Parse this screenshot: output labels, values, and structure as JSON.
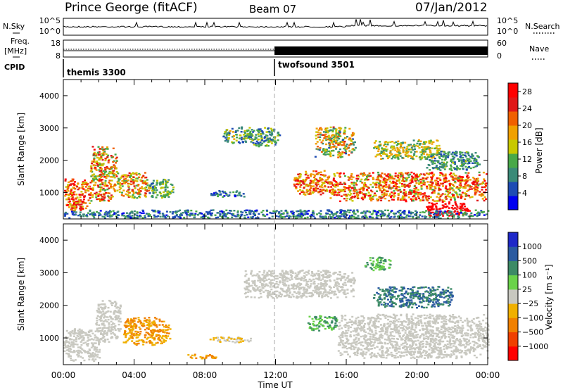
{
  "header": {
    "station": "Prince George (fitACF)",
    "beam": "Beam 07",
    "date": "07/Jan/2012"
  },
  "panels": {
    "nsky": {
      "label": "N.Sky",
      "tick_top": "10^5",
      "tick_bottom": "10^0",
      "right_label": "N.Search",
      "right_tick_top": "10^5",
      "right_tick_bottom": "10^0"
    },
    "freq": {
      "label_1": "Freq.",
      "label_2": "[MHz]",
      "tick_top": "18",
      "tick_bottom": "8",
      "right_label": "Nave",
      "right_tick_top": "60",
      "right_tick_bottom": "0"
    },
    "cpid": {
      "label": "CPID",
      "modes": [
        {
          "name": "themis 3300",
          "start_hour": 0
        },
        {
          "name": "twofsound 3501",
          "start_hour": 12
        }
      ]
    }
  },
  "colors": {
    "power": [
      "#0000f0",
      "#1e4cb4",
      "#3a8a78",
      "#48a848",
      "#c8c800",
      "#f0a000",
      "#f06000",
      "#e01818",
      "#ff0000"
    ],
    "velocity": [
      "#ff0000",
      "#f04000",
      "#f08000",
      "#f0b000",
      "#c8c8c0",
      "#6ad24a",
      "#3c8a66",
      "#2a5aa0",
      "#1e28c8"
    ]
  },
  "chart_data": [
    {
      "type": "heatmap",
      "name": "power",
      "ylabel": "Slant Range [km]",
      "xlim_hours": [
        0,
        24
      ],
      "ylim": [
        180,
        4500
      ],
      "yticks": [
        "1000",
        "2000",
        "3000",
        "4000"
      ],
      "colorbar": {
        "label": "Power [dB]",
        "ticks": [
          "4",
          "8",
          "12",
          "16",
          "20",
          "24",
          "28"
        ],
        "range": [
          0,
          30
        ]
      },
      "blobs": [
        {
          "x": [
            0.0,
            1.5
          ],
          "y": [
            450,
            1450
          ],
          "v": [
            14,
            30
          ]
        },
        {
          "x": [
            1.5,
            3.0
          ],
          "y": [
            750,
            2450
          ],
          "v": [
            10,
            28
          ]
        },
        {
          "x": [
            3.0,
            4.8
          ],
          "y": [
            850,
            1650
          ],
          "v": [
            10,
            26
          ]
        },
        {
          "x": [
            4.8,
            6.2
          ],
          "y": [
            850,
            1450
          ],
          "v": [
            6,
            16
          ]
        },
        {
          "x": [
            8.3,
            10.2
          ],
          "y": [
            880,
            1080
          ],
          "v": [
            2,
            12
          ]
        },
        {
          "x": [
            9.0,
            10.6
          ],
          "y": [
            2550,
            3050
          ],
          "v": [
            4,
            18
          ]
        },
        {
          "x": [
            10.4,
            12.2
          ],
          "y": [
            2450,
            3050
          ],
          "v": [
            4,
            16
          ]
        },
        {
          "x": [
            13.0,
            15.0
          ],
          "y": [
            950,
            1700
          ],
          "v": [
            14,
            28
          ]
        },
        {
          "x": [
            14.2,
            16.5
          ],
          "y": [
            2100,
            3050
          ],
          "v": [
            6,
            24
          ]
        },
        {
          "x": [
            15.0,
            23.9
          ],
          "y": [
            750,
            1650
          ],
          "v": [
            12,
            30
          ]
        },
        {
          "x": [
            20.5,
            23.0
          ],
          "y": [
            300,
            750
          ],
          "v": [
            26,
            30
          ]
        },
        {
          "x": [
            17.5,
            21.5
          ],
          "y": [
            2050,
            2650
          ],
          "v": [
            8,
            20
          ]
        },
        {
          "x": [
            20.5,
            23.5
          ],
          "y": [
            1700,
            2300
          ],
          "v": [
            4,
            14
          ]
        },
        {
          "x": [
            0.0,
            24.0
          ],
          "y": [
            220,
            480
          ],
          "v": [
            2,
            12
          ]
        }
      ]
    },
    {
      "type": "heatmap",
      "name": "velocity",
      "ylabel": "Slant Range [km]",
      "xlabel": "Time UT",
      "xticks": [
        "00:00",
        "04:00",
        "08:00",
        "12:00",
        "16:00",
        "20:00",
        "00:00"
      ],
      "xlim_hours": [
        0,
        24
      ],
      "ylim": [
        180,
        4500
      ],
      "yticks": [
        "1000",
        "2000",
        "3000",
        "4000"
      ],
      "colorbar": {
        "label": "Velocity [m s⁻¹]",
        "ticks": [
          "1000",
          "500",
          "100",
          "25",
          "−25",
          "−100",
          "−500",
          "−1000"
        ]
      },
      "blobs": [
        {
          "x": [
            0.0,
            2.0
          ],
          "y": [
            300,
            1300
          ],
          "v": [
            4,
            4
          ]
        },
        {
          "x": [
            1.8,
            3.2
          ],
          "y": [
            900,
            2200
          ],
          "v": [
            4,
            4
          ]
        },
        {
          "x": [
            3.3,
            6.0
          ],
          "y": [
            800,
            1650
          ],
          "v": [
            2,
            3
          ]
        },
        {
          "x": [
            7.0,
            8.6
          ],
          "y": [
            380,
            520
          ],
          "v": [
            2,
            3
          ]
        },
        {
          "x": [
            8.2,
            10.6
          ],
          "y": [
            880,
            1050
          ],
          "v": [
            3,
            4
          ]
        },
        {
          "x": [
            10.2,
            16.5
          ],
          "y": [
            2250,
            3100
          ],
          "v": [
            4,
            4
          ]
        },
        {
          "x": [
            13.8,
            15.5
          ],
          "y": [
            1250,
            1700
          ],
          "v": [
            5,
            6
          ]
        },
        {
          "x": [
            15.5,
            24.0
          ],
          "y": [
            400,
            1750
          ],
          "v": [
            4,
            4
          ]
        },
        {
          "x": [
            17.5,
            22.0
          ],
          "y": [
            1950,
            2600
          ],
          "v": [
            6,
            7
          ]
        },
        {
          "x": [
            17.0,
            18.5
          ],
          "y": [
            3100,
            3500
          ],
          "v": [
            5,
            6
          ]
        }
      ]
    }
  ]
}
